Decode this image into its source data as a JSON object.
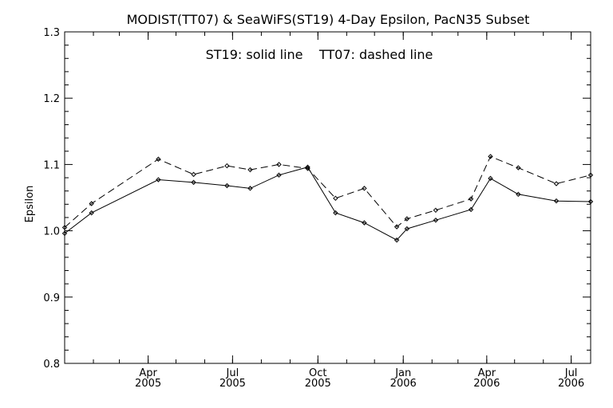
{
  "chart_data": {
    "type": "line",
    "title": "MODIST(TT07) & SeaWiFS(ST19) 4-Day Epsilon, PacN35 Subset",
    "annotation": "ST19: solid line    TT07: dashed line",
    "ylabel": "Epsilon",
    "xlabel": "",
    "ylim": [
      0.8,
      1.3
    ],
    "xlim": [
      "2005-01-01",
      "2006-07-22"
    ],
    "yticks": [
      "0.8",
      "0.9",
      "1.0",
      "1.1",
      "1.2",
      "1.3"
    ],
    "xticks": [
      {
        "date": "2005-04-01",
        "month": "Apr",
        "year": "2005"
      },
      {
        "date": "2005-07-01",
        "month": "Jul",
        "year": "2005"
      },
      {
        "date": "2005-10-01",
        "month": "Oct",
        "year": "2005"
      },
      {
        "date": "2006-01-01",
        "month": "Jan",
        "year": "2006"
      },
      {
        "date": "2006-04-01",
        "month": "Apr",
        "year": "2006"
      },
      {
        "date": "2006-07-01",
        "month": "Jul",
        "year": "2006"
      }
    ],
    "series": [
      {
        "style": "solid",
        "points": [
          [
            "2005-01-01",
            0.996
          ],
          [
            "2005-01-30",
            1.027
          ],
          [
            "2005-04-12",
            1.077
          ],
          [
            "2005-05-20",
            1.073
          ],
          [
            "2005-06-25",
            1.068
          ],
          [
            "2005-07-20",
            1.064
          ],
          [
            "2005-08-20",
            1.084
          ],
          [
            "2005-09-20",
            1.096
          ],
          [
            "2005-10-20",
            1.027
          ],
          [
            "2005-11-20",
            1.012
          ],
          [
            "2005-12-25",
            0.986
          ],
          [
            "2006-01-05",
            1.003
          ],
          [
            "2006-02-05",
            1.016
          ],
          [
            "2006-03-15",
            1.032
          ],
          [
            "2006-04-05",
            1.079
          ],
          [
            "2006-05-05",
            1.055
          ],
          [
            "2006-06-15",
            1.045
          ],
          [
            "2006-07-22",
            1.044
          ]
        ]
      },
      {
        "style": "dashed",
        "points": [
          [
            "2005-01-01",
            1.005
          ],
          [
            "2005-01-30",
            1.041
          ],
          [
            "2005-04-12",
            1.108
          ],
          [
            "2005-05-20",
            1.085
          ],
          [
            "2005-06-25",
            1.098
          ],
          [
            "2005-07-20",
            1.092
          ],
          [
            "2005-08-20",
            1.1
          ],
          [
            "2005-09-20",
            1.094
          ],
          [
            "2005-10-20",
            1.049
          ],
          [
            "2005-11-20",
            1.064
          ],
          [
            "2005-12-25",
            1.006
          ],
          [
            "2006-01-05",
            1.018
          ],
          [
            "2006-02-05",
            1.031
          ],
          [
            "2006-03-15",
            1.048
          ],
          [
            "2006-04-05",
            1.112
          ],
          [
            "2006-05-05",
            1.095
          ],
          [
            "2006-06-15",
            1.071
          ],
          [
            "2006-07-22",
            1.084
          ]
        ]
      }
    ],
    "grid": false,
    "colors": {
      "line": "#000000",
      "background": "#ffffff"
    }
  }
}
